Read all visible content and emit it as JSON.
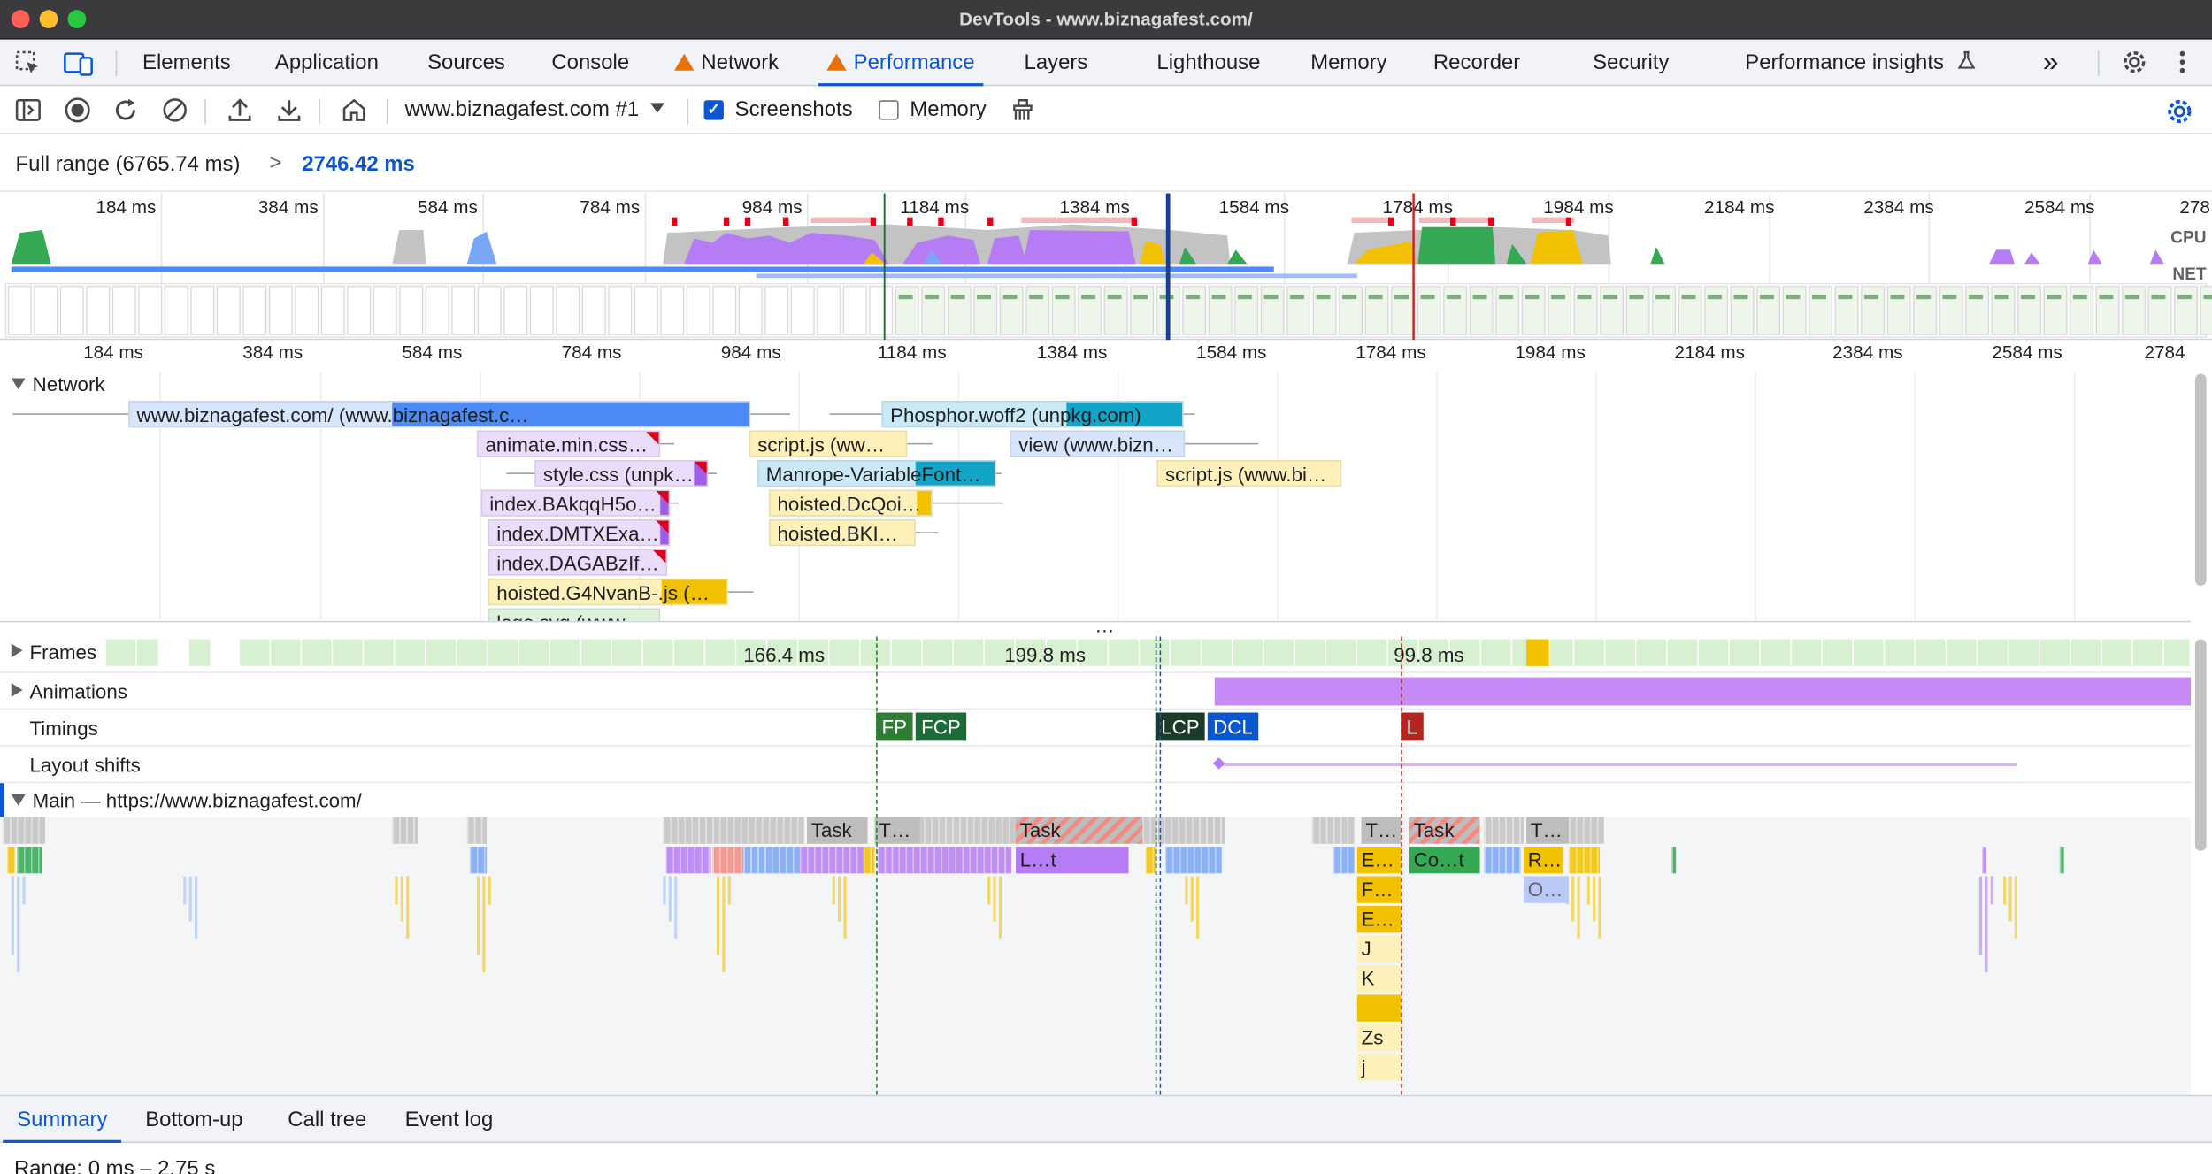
{
  "window": {
    "title": "DevTools - www.biznagafest.com/"
  },
  "tabs": {
    "elements": "Elements",
    "application": "Application",
    "sources": "Sources",
    "console": "Console",
    "network": "Network",
    "performance": "Performance",
    "layers": "Layers",
    "lighthouse": "Lighthouse",
    "memory": "Memory",
    "recorder": "Recorder",
    "security": "Security",
    "performance_insights": "Performance insights",
    "more": "»"
  },
  "toolbar": {
    "recording_select": "www.biznagafest.com #1",
    "screenshots_label": "Screenshots",
    "screenshots_checked": true,
    "memory_label": "Memory",
    "memory_checked": false
  },
  "breadcrumb": {
    "full_range": "Full range (6765.74 ms)",
    "separator": ">",
    "current": "2746.42 ms"
  },
  "overview": {
    "ticks": [
      "184 ms",
      "384 ms",
      "584 ms",
      "784 ms",
      "984 ms",
      "1184 ms",
      "1384 ms",
      "1584 ms",
      "1784 ms",
      "1984 ms",
      "2184 ms",
      "2384 ms",
      "2584 ms",
      "278"
    ],
    "cpu_label": "CPU",
    "net_label": "NET"
  },
  "ruler": {
    "ticks": [
      "184 ms",
      "384 ms",
      "584 ms",
      "784 ms",
      "984 ms",
      "1184 ms",
      "1384 ms",
      "1584 ms",
      "1784 ms",
      "1984 ms",
      "2184 ms",
      "2384 ms",
      "2584 ms",
      "2784"
    ]
  },
  "network_track": {
    "label": "Network",
    "requests": [
      "www.biznagafest.com/ (www.biznagafest.c…",
      "animate.min.css…",
      "style.css (unpk…",
      "index.BAkqqH5o…",
      "index.DMTXExa…",
      "index.DAGABzIf…",
      "hoisted.G4NvanB-.js (…",
      "logo.svg (www…",
      "script.js (ww…",
      "Manrope-VariableFont…",
      "hoisted.DcQoi…",
      "hoisted.BKI…",
      "Phosphor.woff2 (unpkg.com)",
      "view (www.bizn…",
      "script.js (www.bi…"
    ]
  },
  "tracks": {
    "frames": "Frames",
    "frame_times": [
      "166.4 ms",
      "199.8 ms",
      "99.8 ms"
    ],
    "animations": "Animations",
    "timings": "Timings",
    "timing_markers": {
      "fp": "FP",
      "fcp": "FCP",
      "lcp": "LCP",
      "dcl": "DCL",
      "l": "L"
    },
    "layout_shifts": "Layout shifts",
    "main": "Main — https://www.biznagafest.com/",
    "divider": "…"
  },
  "flame": {
    "task1": "Task",
    "t1": "T…",
    "task2": "Task",
    "lt": "L…t",
    "t2": "T…",
    "task3": "Task",
    "t3": "T…",
    "e1": "E…",
    "co": "Co…t",
    "r": "R…",
    "f": "F…",
    "o": "O…",
    "e2": "E…",
    "j": "J",
    "k": "K",
    "zs": "Zs",
    "j2": "j"
  },
  "bottom_tabs": {
    "summary": "Summary",
    "bottom_up": "Bottom-up",
    "call_tree": "Call tree",
    "event_log": "Event log"
  },
  "summary": {
    "range": "Range: 0 ms – 2.75 s"
  },
  "colors": {
    "accent": "#0b57d0",
    "scripting": "#f2c200",
    "rendering": "#b57cf5",
    "painting": "#34a853",
    "loading": "#7aa7f5",
    "system": "#c3c3c3"
  }
}
